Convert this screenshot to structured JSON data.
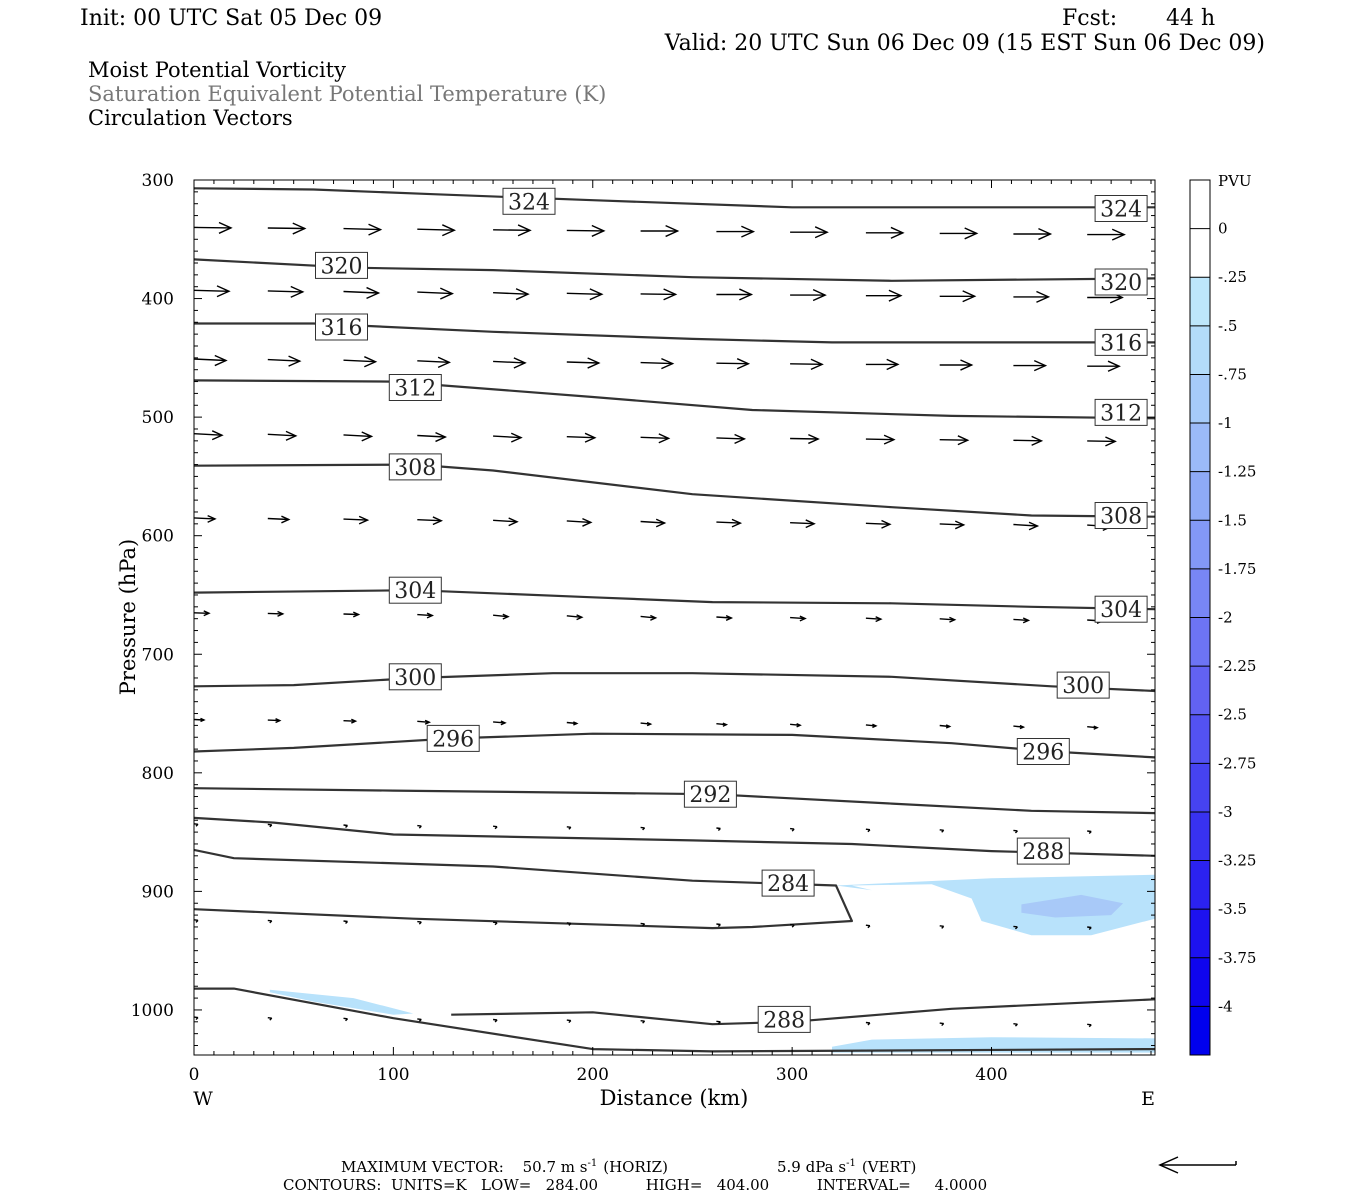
{
  "header": {
    "init": "Init: 00 UTC Sat 05 Dec 09",
    "fcst_label": "Fcst:",
    "fcst_value": "44 h",
    "valid": "Valid: 20 UTC Sun 06 Dec 09 (15 EST Sun 06 Dec 09)",
    "fields": [
      "Moist Potential Vorticity",
      "Saturation Equivalent Potential Temperature (K)",
      "Circulation Vectors"
    ]
  },
  "colors": {
    "contour": "#333333",
    "field_primary": "#000000",
    "field_secondary": "#777777",
    "colorbar": [
      "#ffffff",
      "#ffffff",
      "#bde6fb",
      "#b3dcfa",
      "#a6cbf9",
      "#9bbaf8",
      "#8eaaf7",
      "#8398f6",
      "#7886f5",
      "#6d74f4",
      "#6262f3",
      "#5352f2",
      "#4643f1",
      "#3832f1",
      "#2b22f0",
      "#1d12ef",
      "#0f05ee",
      "#0000ed"
    ],
    "shade_light": "#b8e2fb",
    "shade_mid": "#a8c9f8"
  },
  "chart_data": {
    "type": "cross-section",
    "xlabel": "Distance (km)",
    "ylabel": "Pressure (hPa)",
    "x_range": [
      0,
      482
    ],
    "y_range": [
      300,
      1038
    ],
    "x_ticks": [
      0,
      100,
      200,
      300,
      400
    ],
    "y_ticks": [
      300,
      400,
      500,
      600,
      700,
      800,
      900,
      1000
    ],
    "x_end_labels": {
      "left": "W",
      "right": "E"
    },
    "colorbar": {
      "unit": "PVU",
      "labels": [
        "0",
        "-.25",
        "-.5",
        "-.75",
        "-1",
        "-1.25",
        "-1.5",
        "-1.75",
        "-2",
        "-2.25",
        "-2.5",
        "-2.75",
        "-3",
        "-3.25",
        "-3.5",
        "-3.75",
        "-4"
      ]
    },
    "contours": [
      {
        "value": 324,
        "points": [
          [
            0,
            307
          ],
          [
            60,
            308
          ],
          [
            120,
            312
          ],
          [
            200,
            317
          ],
          [
            300,
            323
          ],
          [
            400,
            323
          ],
          [
            482,
            323
          ]
        ],
        "labels": [
          [
            168,
            318
          ],
          [
            465,
            324
          ]
        ]
      },
      {
        "value": 320,
        "points": [
          [
            0,
            367
          ],
          [
            80,
            374
          ],
          [
            150,
            376
          ],
          [
            250,
            382
          ],
          [
            350,
            385
          ],
          [
            482,
            383
          ]
        ],
        "labels": [
          [
            74,
            372
          ],
          [
            465,
            386
          ]
        ]
      },
      {
        "value": 316,
        "points": [
          [
            0,
            421
          ],
          [
            60,
            421
          ],
          [
            150,
            428
          ],
          [
            250,
            434
          ],
          [
            320,
            437
          ],
          [
            482,
            437
          ]
        ],
        "labels": [
          [
            74,
            424
          ],
          [
            465,
            437
          ]
        ]
      },
      {
        "value": 312,
        "points": [
          [
            0,
            469
          ],
          [
            100,
            470
          ],
          [
            200,
            483
          ],
          [
            280,
            494
          ],
          [
            380,
            499
          ],
          [
            482,
            501
          ]
        ],
        "labels": [
          [
            111,
            475
          ],
          [
            465,
            496
          ]
        ]
      },
      {
        "value": 308,
        "points": [
          [
            0,
            541
          ],
          [
            111,
            540
          ],
          [
            150,
            545
          ],
          [
            250,
            565
          ],
          [
            350,
            576
          ],
          [
            420,
            583
          ],
          [
            482,
            584
          ]
        ],
        "labels": [
          [
            111,
            542
          ],
          [
            465,
            583
          ]
        ]
      },
      {
        "value": 304,
        "points": [
          [
            0,
            648
          ],
          [
            111,
            646
          ],
          [
            200,
            652
          ],
          [
            260,
            656
          ],
          [
            350,
            657
          ],
          [
            420,
            660
          ],
          [
            482,
            662
          ]
        ],
        "labels": [
          [
            111,
            646
          ],
          [
            465,
            662
          ]
        ]
      },
      {
        "value": 300,
        "points": [
          [
            0,
            727
          ],
          [
            50,
            726
          ],
          [
            111,
            720
          ],
          [
            180,
            716
          ],
          [
            250,
            716
          ],
          [
            350,
            719
          ],
          [
            430,
            727
          ],
          [
            482,
            731
          ]
        ],
        "labels": [
          [
            111,
            719
          ],
          [
            446,
            726
          ]
        ]
      },
      {
        "value": 296,
        "points": [
          [
            0,
            782
          ],
          [
            50,
            779
          ],
          [
            130,
            771
          ],
          [
            200,
            767
          ],
          [
            300,
            768
          ],
          [
            380,
            775
          ],
          [
            430,
            782
          ],
          [
            482,
            787
          ]
        ],
        "labels": [
          [
            130,
            771
          ],
          [
            426,
            782
          ]
        ]
      },
      {
        "value": 292,
        "points": [
          [
            0,
            813
          ],
          [
            100,
            815
          ],
          [
            260,
            818
          ],
          [
            350,
            826
          ],
          [
            420,
            832
          ],
          [
            482,
            834
          ]
        ],
        "labels": [
          [
            259,
            818
          ]
        ]
      },
      {
        "value": 288,
        "points": [
          [
            0,
            838
          ],
          [
            40,
            842
          ],
          [
            100,
            852
          ],
          [
            250,
            857
          ],
          [
            330,
            860
          ],
          [
            400,
            866
          ],
          [
            482,
            870
          ]
        ],
        "labels": [
          [
            426,
            866
          ]
        ]
      },
      {
        "value": 284,
        "points": [
          [
            0,
            865
          ],
          [
            20,
            872
          ],
          [
            150,
            879
          ],
          [
            250,
            891
          ],
          [
            322,
            895
          ],
          [
            330,
            925
          ],
          [
            280,
            930
          ],
          [
            260,
            931
          ],
          [
            110,
            923
          ],
          [
            0,
            915
          ]
        ],
        "labels": [
          [
            298,
            893
          ]
        ]
      },
      {
        "value": 288,
        "points": [
          [
            0,
            982
          ],
          [
            20,
            982
          ],
          [
            100,
            1007
          ],
          [
            200,
            1033
          ],
          [
            260,
            1035
          ],
          [
            482,
            1033
          ]
        ],
        "labels": []
      },
      {
        "value": 288,
        "points": [
          [
            129,
            1004
          ],
          [
            200,
            1002
          ],
          [
            260,
            1012
          ],
          [
            300,
            1010
          ],
          [
            380,
            999
          ],
          [
            482,
            991
          ]
        ],
        "labels": [
          [
            296,
            1008
          ]
        ]
      }
    ],
    "shading": [
      {
        "level": "-.25",
        "points": [
          [
            322,
            895
          ],
          [
            400,
            889
          ],
          [
            482,
            886
          ],
          [
            482,
            923
          ],
          [
            450,
            937
          ],
          [
            420,
            937
          ],
          [
            395,
            925
          ],
          [
            390,
            906
          ],
          [
            370,
            894
          ],
          [
            330,
            895
          ],
          [
            340,
            899
          ]
        ]
      },
      {
        "level": "-.5",
        "points": [
          [
            415,
            911
          ],
          [
            445,
            903
          ],
          [
            466,
            910
          ],
          [
            460,
            920
          ],
          [
            432,
            922
          ],
          [
            415,
            918
          ]
        ]
      },
      {
        "level": "-.25",
        "points": [
          [
            320,
            1031
          ],
          [
            340,
            1025
          ],
          [
            400,
            1023
          ],
          [
            482,
            1024
          ],
          [
            482,
            1036
          ],
          [
            320,
            1036
          ]
        ]
      },
      {
        "level": "-.25",
        "points": [
          [
            38,
            983
          ],
          [
            80,
            990
          ],
          [
            110,
            1003
          ],
          [
            100,
            1004
          ],
          [
            60,
            993
          ],
          [
            38,
            985
          ]
        ]
      }
    ],
    "vectors": {
      "x": [
        0,
        37,
        75,
        112,
        150,
        187,
        224,
        262,
        299,
        337,
        374,
        411,
        448
      ],
      "rows": [
        {
          "p": 340,
          "length": [
            37,
            37,
            37,
            37,
            37,
            37,
            37,
            37,
            37,
            37,
            37,
            37,
            37
          ],
          "rise": [
            0.5,
            0.5,
            1,
            1,
            0.5,
            0.5,
            0,
            0,
            0,
            0,
            0,
            0,
            0
          ]
        },
        {
          "p": 393,
          "length": [
            35,
            35,
            35,
            35,
            35,
            35,
            35,
            35,
            35,
            35,
            35,
            35,
            35
          ],
          "rise": [
            1,
            1,
            1.5,
            1.5,
            1.5,
            1,
            0.5,
            0,
            0,
            0,
            0,
            0,
            0
          ]
        },
        {
          "p": 451,
          "length": [
            32,
            32,
            32,
            32,
            32,
            32,
            32,
            32,
            32,
            32,
            32,
            32,
            32
          ],
          "rise": [
            1.5,
            1.5,
            1.5,
            1.5,
            1.5,
            1,
            1,
            0.5,
            0.5,
            0,
            0,
            0,
            0
          ]
        },
        {
          "p": 514,
          "length": [
            28,
            28,
            28,
            28,
            28,
            28,
            28,
            28,
            28,
            28,
            28,
            28,
            28
          ],
          "rise": [
            1.5,
            1.5,
            1.5,
            1.5,
            1.5,
            1,
            1,
            1,
            0.5,
            0.5,
            0.5,
            0.5,
            0.5
          ]
        },
        {
          "p": 585,
          "length": [
            21,
            21,
            24,
            24,
            24,
            24,
            24,
            24,
            24,
            24,
            24,
            24,
            24
          ],
          "rise": [
            1,
            1,
            1,
            1,
            1.5,
            1.5,
            1.5,
            1,
            1,
            1,
            1,
            1.5,
            1.5
          ]
        },
        {
          "p": 665,
          "length": [
            15,
            15,
            15,
            15,
            15,
            15,
            15,
            15,
            15,
            15,
            15,
            15,
            15
          ],
          "rise": [
            0.5,
            0.5,
            0.5,
            1,
            1.5,
            1.5,
            1.5,
            1,
            1,
            1,
            1,
            1,
            1
          ]
        },
        {
          "p": 755,
          "length": [
            10,
            12,
            12,
            12,
            12,
            10,
            10,
            10,
            10,
            10,
            10,
            10,
            10
          ],
          "rise": [
            0.5,
            0.5,
            0.5,
            1,
            1,
            1,
            1,
            1,
            1,
            1,
            1,
            1,
            1
          ]
        },
        {
          "p": 843,
          "length": [
            4,
            4,
            4,
            4,
            4,
            4,
            4,
            4,
            4,
            4,
            4,
            4,
            4
          ],
          "rise": [
            0.5,
            0.5,
            0.5,
            0.5,
            0.5,
            0.5,
            0.5,
            0.5,
            0.5,
            0.5,
            0.5,
            0.5,
            0.5
          ]
        },
        {
          "p": 924,
          "length": [
            4,
            4,
            4,
            4,
            4,
            4,
            4,
            4,
            4,
            4,
            4,
            4,
            4
          ],
          "rise": [
            0.5,
            0.5,
            0.5,
            0.5,
            0.5,
            0.5,
            0.5,
            0.5,
            0.5,
            0.5,
            0.5,
            0.5,
            0.5
          ]
        },
        {
          "p": 1006,
          "length": [
            4,
            4,
            4,
            4,
            4,
            4,
            4,
            4,
            4,
            4,
            4,
            4,
            4
          ],
          "rise": [
            0.5,
            0.5,
            0.5,
            0.5,
            0.5,
            0.5,
            0.5,
            0.5,
            0.5,
            0.5,
            0.5,
            0.5,
            0.5
          ]
        }
      ]
    }
  },
  "footer": {
    "max_label": "MAXIMUM VECTOR:",
    "max_horiz": "50.7 m s",
    "horiz_exp": "-1",
    "horiz_tag": "(HORIZ)",
    "max_vert": "5.9 dPa s",
    "vert_exp": "-1",
    "vert_tag": "(VERT)",
    "contours_line": "CONTOURS:  UNITS=K   LOW=   284.00          HIGH=   404.00          INTERVAL=     4.0000"
  }
}
